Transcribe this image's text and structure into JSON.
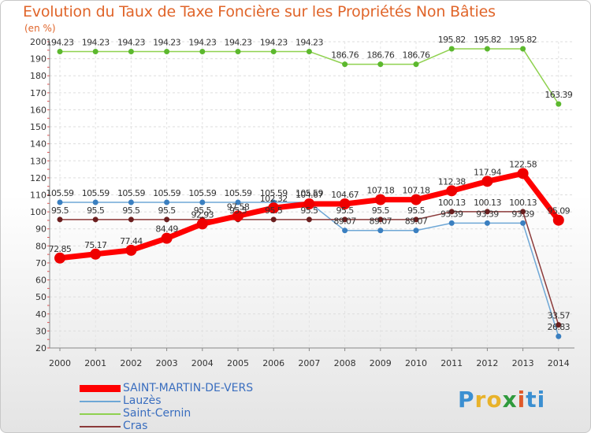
{
  "header": {
    "title": "Evolution du Taux de Taxe Foncière sur les Propriétés Non Bâties",
    "unit": "(en %)"
  },
  "brand": {
    "letters": [
      "P",
      "r",
      "o",
      "x",
      "i",
      "t",
      "i"
    ]
  },
  "chart_data": {
    "type": "line",
    "title": "Evolution du Taux de Taxe Foncière sur les Propriétés Non Bâties",
    "ylabel": "(en %)",
    "xlabel": "",
    "ylim": [
      20,
      200
    ],
    "yticks": [
      20,
      30,
      40,
      50,
      60,
      70,
      80,
      90,
      100,
      110,
      120,
      130,
      140,
      150,
      160,
      170,
      180,
      190,
      200
    ],
    "categories": [
      "2000",
      "2001",
      "2002",
      "2003",
      "2004",
      "2005",
      "2006",
      "2007",
      "2008",
      "2009",
      "2010",
      "2011",
      "2012",
      "2013",
      "2014"
    ],
    "legend_position": "bottom-left",
    "series": [
      {
        "name": "Saint-Cernin",
        "color": "#8fd14f",
        "marker": "#5cb82e",
        "width": 1.5,
        "radius": 3.5,
        "values": [
          194.23,
          194.23,
          194.23,
          194.23,
          194.23,
          194.23,
          194.23,
          194.23,
          186.76,
          186.76,
          186.76,
          195.82,
          195.82,
          195.82,
          163.39
        ],
        "labels": [
          "194.23",
          "194.23",
          "194.23",
          "194.23",
          "194.23",
          "194.23",
          "194.23",
          "194.23",
          "186.76",
          "186.76",
          "186.76",
          "195.82",
          "195.82",
          "195.82",
          "163.39"
        ]
      },
      {
        "name": "Lauzès",
        "color": "#6ea7d6",
        "marker": "#3a7fc0",
        "width": 1.5,
        "radius": 3.5,
        "values": [
          105.59,
          105.59,
          105.59,
          105.59,
          105.59,
          105.59,
          105.59,
          105.59,
          89.07,
          89.07,
          89.07,
          93.39,
          93.39,
          93.39,
          26.83
        ],
        "labels": [
          "105.59",
          "105.59",
          "105.59",
          "105.59",
          "105.59",
          "105.59",
          "105.59",
          "105.59",
          "89.07",
          "89.07",
          "89.07",
          "93.39",
          "93.39",
          "93.39",
          "26.83"
        ]
      },
      {
        "name": "Cras",
        "color": "#8b3a3a",
        "marker": "#6b1e1e",
        "width": 1.5,
        "radius": 3.5,
        "values": [
          95.5,
          95.5,
          95.5,
          95.5,
          95.5,
          95.5,
          95.5,
          95.5,
          95.5,
          95.5,
          95.5,
          100.13,
          100.13,
          100.13,
          33.57
        ],
        "labels": [
          "95.5",
          "95.5",
          "95.5",
          "95.5",
          "95.5",
          "95.5",
          "95.5",
          "95.5",
          "95.5",
          "95.5",
          "95.5",
          "100.13",
          "100.13",
          "100.13",
          "33.57"
        ]
      },
      {
        "name": "SAINT-MARTIN-DE-VERS",
        "color": "#ff0000",
        "marker": "#ee0000",
        "width": 7,
        "radius": 7,
        "values": [
          72.85,
          75.17,
          77.44,
          84.49,
          92.93,
          97.58,
          102.32,
          104.67,
          104.67,
          107.18,
          107.18,
          112.38,
          117.94,
          122.58,
          95.09
        ],
        "labels": [
          "72.85",
          "75.17",
          "77.44",
          "84.49",
          "92.93",
          "97.58",
          "102.32",
          "104.67",
          "104.67",
          "107.18",
          "107.18",
          "112.38",
          "117.94",
          "122.58",
          "95.09"
        ]
      }
    ],
    "legend_order": [
      "SAINT-MARTIN-DE-VERS",
      "Lauzès",
      "Saint-Cernin",
      "Cras"
    ]
  }
}
